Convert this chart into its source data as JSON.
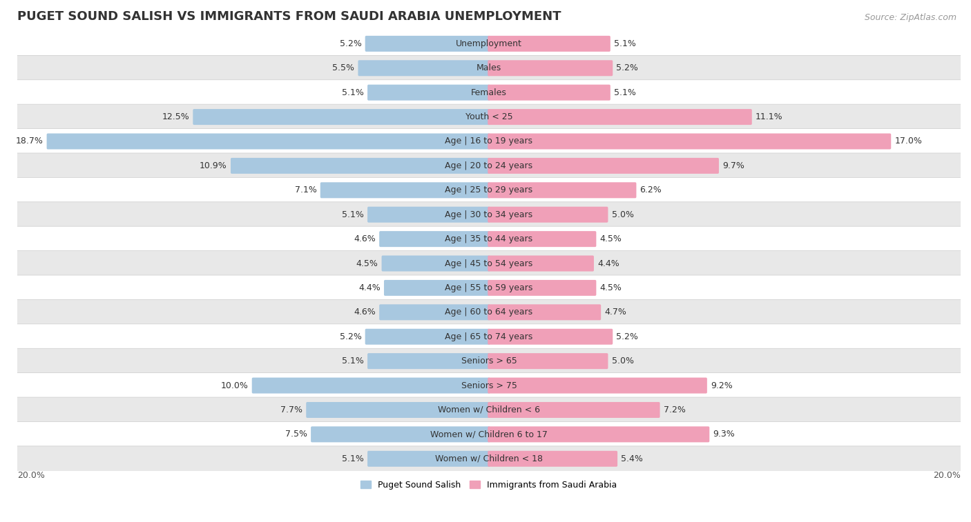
{
  "title": "PUGET SOUND SALISH VS IMMIGRANTS FROM SAUDI ARABIA UNEMPLOYMENT",
  "source": "Source: ZipAtlas.com",
  "categories": [
    "Unemployment",
    "Males",
    "Females",
    "Youth < 25",
    "Age | 16 to 19 years",
    "Age | 20 to 24 years",
    "Age | 25 to 29 years",
    "Age | 30 to 34 years",
    "Age | 35 to 44 years",
    "Age | 45 to 54 years",
    "Age | 55 to 59 years",
    "Age | 60 to 64 years",
    "Age | 65 to 74 years",
    "Seniors > 65",
    "Seniors > 75",
    "Women w/ Children < 6",
    "Women w/ Children 6 to 17",
    "Women w/ Children < 18"
  ],
  "left_values": [
    5.2,
    5.5,
    5.1,
    12.5,
    18.7,
    10.9,
    7.1,
    5.1,
    4.6,
    4.5,
    4.4,
    4.6,
    5.2,
    5.1,
    10.0,
    7.7,
    7.5,
    5.1
  ],
  "right_values": [
    5.1,
    5.2,
    5.1,
    11.1,
    17.0,
    9.7,
    6.2,
    5.0,
    4.5,
    4.4,
    4.5,
    4.7,
    5.2,
    5.0,
    9.2,
    7.2,
    9.3,
    5.4
  ],
  "left_color": "#A8C8E0",
  "right_color": "#F0A0B8",
  "bar_height": 0.55,
  "max_value": 20.0,
  "bg_color_odd": "#FFFFFF",
  "bg_color_even": "#E8E8E8",
  "legend_left": "Puget Sound Salish",
  "legend_right": "Immigrants from Saudi Arabia",
  "axis_label_left": "20.0%",
  "axis_label_right": "20.0%",
  "title_fontsize": 13,
  "source_fontsize": 9,
  "label_fontsize": 9,
  "category_fontsize": 9,
  "axis_tick_fontsize": 9
}
